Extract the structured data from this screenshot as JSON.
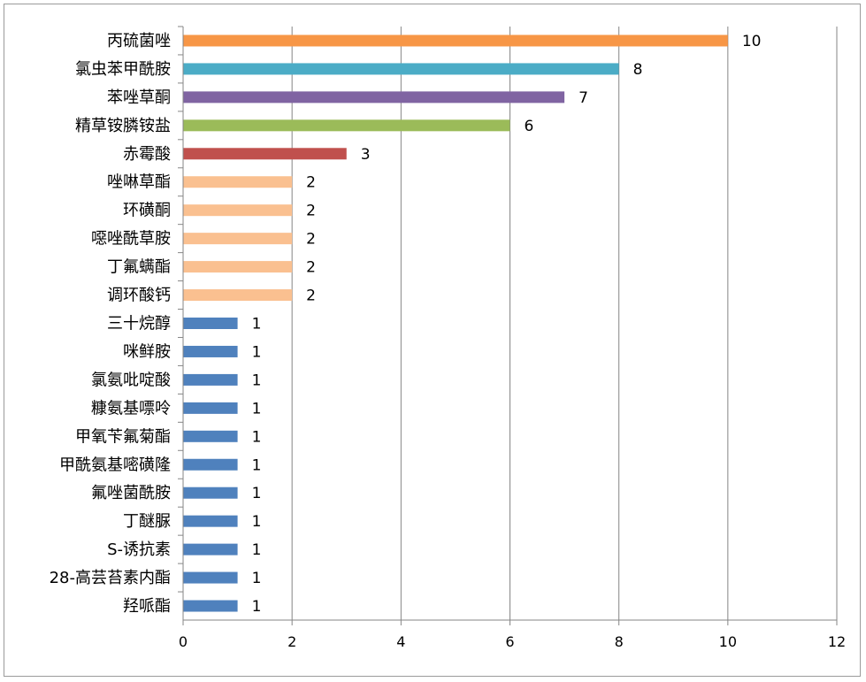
{
  "chart_data": {
    "type": "bar",
    "orientation": "horizontal",
    "categories": [
      "丙硫菌唑",
      "氯虫苯甲酰胺",
      "苯唑草酮",
      "精草铵膦铵盐",
      "赤霉酸",
      "唑啉草酯",
      "环磺酮",
      "噁唑酰草胺",
      "丁氟螨酯",
      "调环酸钙",
      "三十烷醇",
      "咪鲜胺",
      "氯氨吡啶酸",
      "糠氨基嘌呤",
      "甲氧苄氟菊酯",
      "甲酰氨基嘧磺隆",
      "氟唑菌酰胺",
      "丁醚脲",
      "S-诱抗素",
      "28-高芸苔素内酯",
      "羟哌酯"
    ],
    "values": [
      10,
      8,
      7,
      6,
      3,
      2,
      2,
      2,
      2,
      2,
      1,
      1,
      1,
      1,
      1,
      1,
      1,
      1,
      1,
      1,
      1
    ],
    "colors": [
      "#F79646",
      "#4BACC6",
      "#8064A2",
      "#9BBB59",
      "#C0504D",
      "#FAC090",
      "#FAC090",
      "#FAC090",
      "#FAC090",
      "#FAC090",
      "#4F81BD",
      "#4F81BD",
      "#4F81BD",
      "#4F81BD",
      "#4F81BD",
      "#4F81BD",
      "#4F81BD",
      "#4F81BD",
      "#4F81BD",
      "#4F81BD",
      "#4F81BD"
    ],
    "xlim": [
      0,
      12
    ],
    "xticks": [
      0,
      2,
      4,
      6,
      8,
      10,
      12
    ],
    "grid": "vertical",
    "legend": "none",
    "title": "",
    "xlabel": "",
    "ylabel": ""
  }
}
